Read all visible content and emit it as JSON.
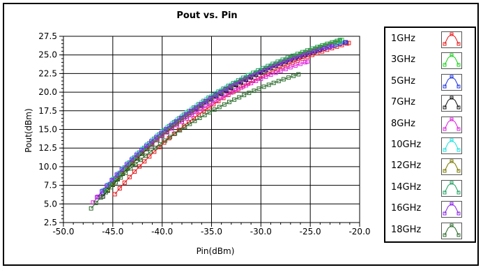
{
  "chart_data": {
    "type": "line",
    "title": "Pout vs. Pin",
    "xlabel": "Pin(dBm)",
    "ylabel": "Pout(dBm)",
    "xlim": [
      -50.0,
      -20.0
    ],
    "ylim": [
      2.5,
      27.5
    ],
    "x_ticks": [
      "-50.0",
      "-45.0",
      "-40.0",
      "-35.0",
      "-30.0",
      "-25.0",
      "-20.0"
    ],
    "y_ticks": [
      "2.5",
      "5.0",
      "7.5",
      "10.0",
      "12.5",
      "15.0",
      "17.5",
      "20.0",
      "22.5",
      "25.0",
      "27.5"
    ],
    "grid": true,
    "legend_position": "right",
    "series": [
      {
        "name": "1GHz",
        "color": "#e8181b",
        "start": [
          -44.8,
          6.3
        ],
        "end": [
          -21.1,
          26.6
        ]
      },
      {
        "name": "3GHz",
        "color": "#1bd11b",
        "start": [
          -45.5,
          6.8
        ],
        "end": [
          -21.8,
          27.0
        ]
      },
      {
        "name": "5GHz",
        "color": "#1f35e0",
        "start": [
          -46.0,
          6.5
        ],
        "end": [
          -21.4,
          26.7
        ]
      },
      {
        "name": "7GHz",
        "color": "#111111",
        "start": [
          -46.0,
          6.0
        ],
        "end": [
          -23.6,
          25.9
        ]
      },
      {
        "name": "8GHz",
        "color": "#e020e0",
        "start": [
          -47.0,
          5.2
        ],
        "end": [
          -25.3,
          24.1
        ]
      },
      {
        "name": "10GHz",
        "color": "#20e0e0",
        "start": [
          -46.0,
          6.8
        ],
        "end": [
          -22.0,
          26.8
        ]
      },
      {
        "name": "12GHz",
        "color": "#7a7a00",
        "start": [
          -45.5,
          6.9
        ],
        "end": [
          -22.0,
          26.9
        ]
      },
      {
        "name": "14GHz",
        "color": "#20a060",
        "start": [
          -45.8,
          6.9
        ],
        "end": [
          -22.0,
          27.0
        ]
      },
      {
        "name": "16GHz",
        "color": "#8a22e8",
        "start": [
          -46.6,
          5.9
        ],
        "end": [
          -22.8,
          26.2
        ]
      },
      {
        "name": "18GHz",
        "color": "#2a6a2a",
        "start": [
          -47.2,
          4.4
        ],
        "end": [
          -26.2,
          22.4
        ]
      }
    ]
  }
}
